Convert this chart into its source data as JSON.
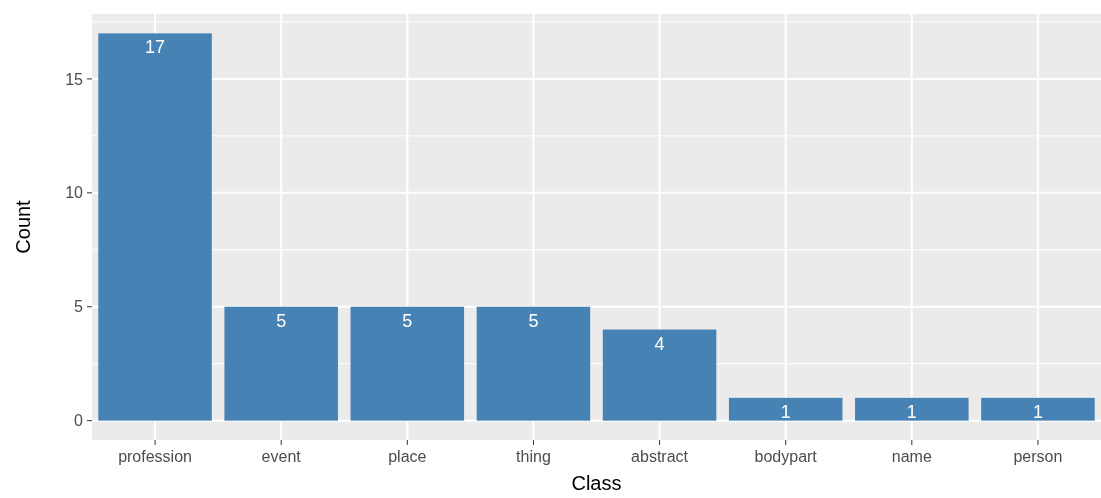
{
  "chart_data": {
    "type": "bar",
    "xlabel": "Class",
    "ylabel": "Count",
    "categories": [
      "profession",
      "event",
      "place",
      "thing",
      "abstract",
      "bodypart",
      "name",
      "person"
    ],
    "values": [
      17,
      5,
      5,
      5,
      4,
      1,
      1,
      1
    ],
    "color": "#4682b4",
    "ylim": [
      -0.85,
      17.85
    ],
    "yticks": [
      0,
      5,
      10,
      15
    ],
    "grid": true,
    "data_labels": true
  }
}
